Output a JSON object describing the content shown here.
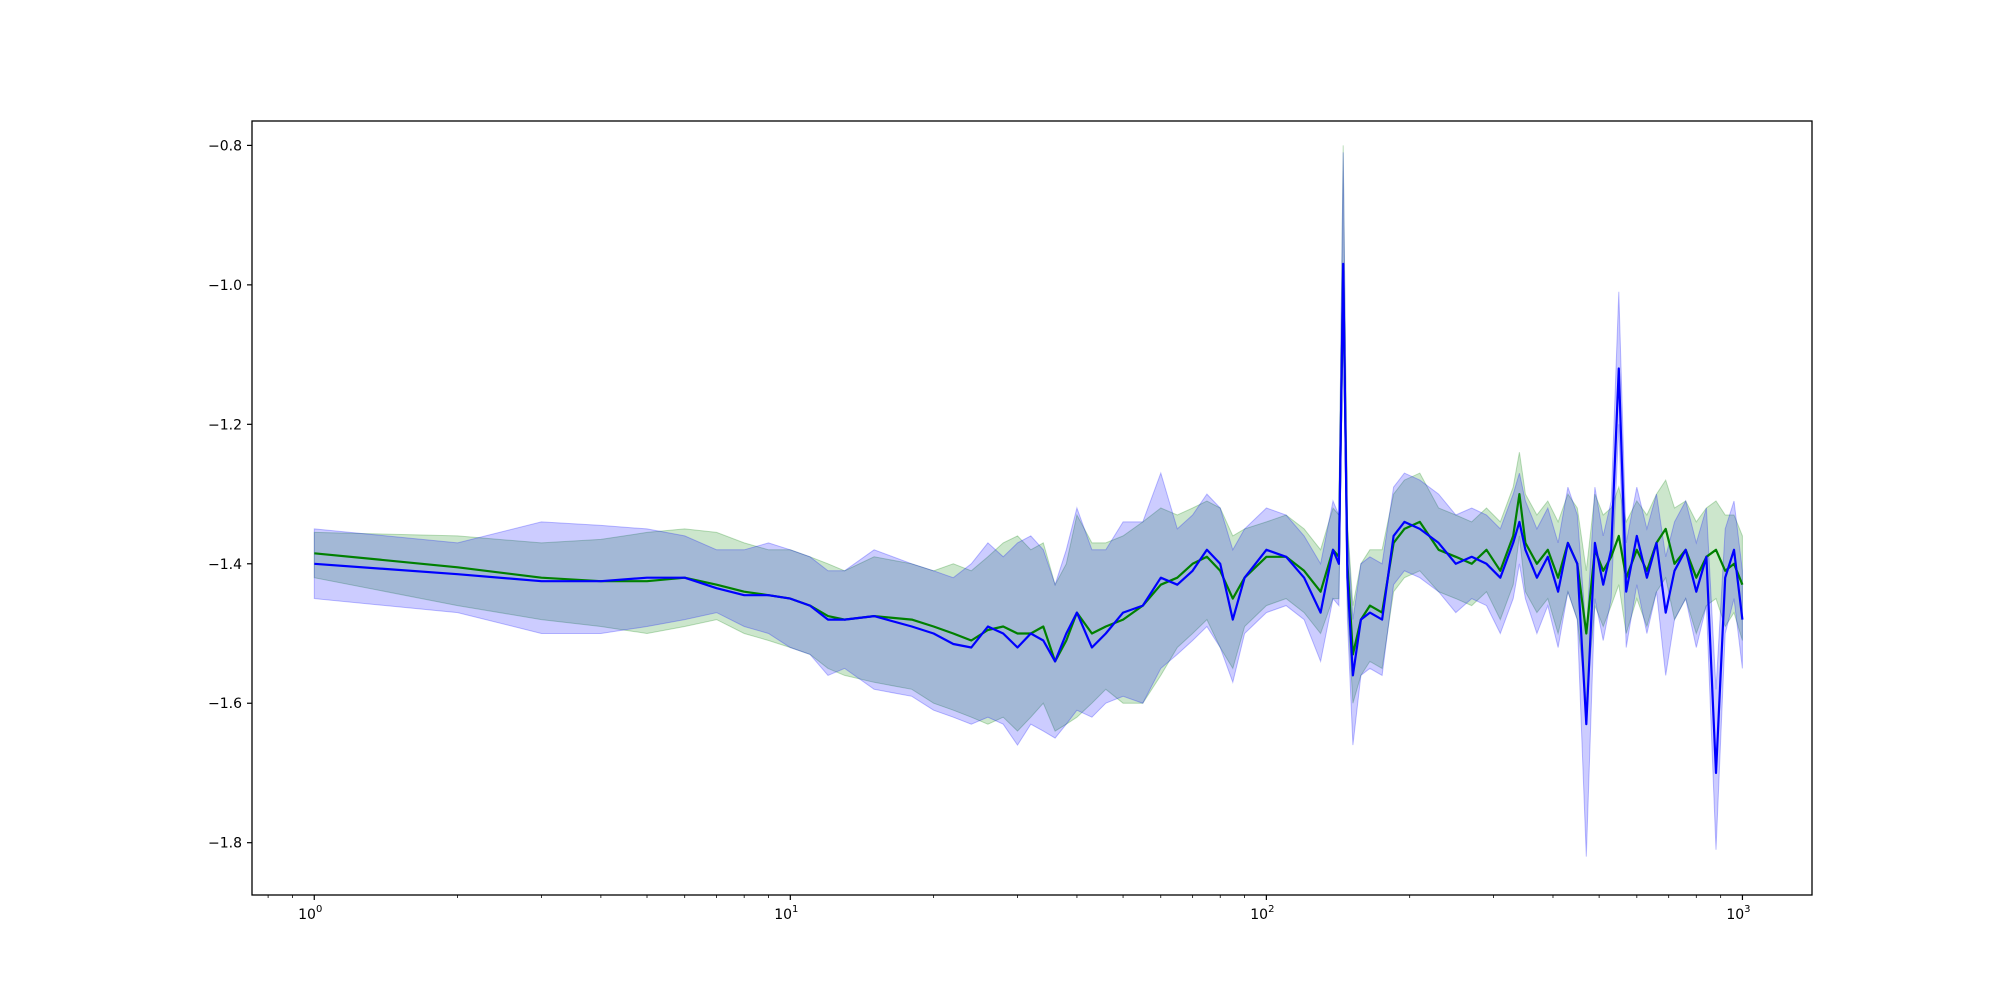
{
  "chart_data": {
    "type": "line",
    "xscale": "log",
    "xlim": [
      0.74,
      1400
    ],
    "ylim": [
      -1.875,
      -0.765
    ],
    "xticks": [
      {
        "value": 1,
        "base": "10",
        "exp": "0"
      },
      {
        "value": 10,
        "base": "10",
        "exp": "1"
      },
      {
        "value": 100,
        "base": "10",
        "exp": "2"
      },
      {
        "value": 1000,
        "base": "10",
        "exp": "3"
      }
    ],
    "yticks": [
      {
        "value": -0.8,
        "label": "−0.8"
      },
      {
        "value": -1.0,
        "label": "−1.0"
      },
      {
        "value": -1.2,
        "label": "−1.2"
      },
      {
        "value": -1.4,
        "label": "−1.4"
      },
      {
        "value": -1.6,
        "label": "−1.6"
      },
      {
        "value": -1.8,
        "label": "−1.8"
      }
    ],
    "grid": false,
    "series": [
      {
        "color": "#008000",
        "band_opacity": 0.2,
        "x": [
          1,
          2,
          3,
          4,
          5,
          6,
          7,
          8,
          9,
          10,
          11,
          12,
          13,
          15,
          18,
          20,
          22,
          24,
          26,
          28,
          30,
          32,
          34,
          36,
          38,
          40,
          43,
          46,
          50,
          55,
          60,
          65,
          70,
          75,
          80,
          85,
          90,
          100,
          110,
          120,
          130,
          138,
          142,
          145,
          148,
          152,
          158,
          165,
          175,
          185,
          195,
          210,
          230,
          250,
          270,
          290,
          310,
          330,
          340,
          350,
          370,
          390,
          410,
          430,
          450,
          470,
          490,
          510,
          530,
          550,
          570,
          600,
          630,
          660,
          690,
          720,
          760,
          800,
          840,
          880,
          920,
          960,
          1000
        ],
        "y": [
          -1.385,
          -1.405,
          -1.42,
          -1.425,
          -1.425,
          -1.42,
          -1.43,
          -1.44,
          -1.445,
          -1.45,
          -1.46,
          -1.475,
          -1.48,
          -1.475,
          -1.48,
          -1.49,
          -1.5,
          -1.51,
          -1.495,
          -1.49,
          -1.5,
          -1.5,
          -1.49,
          -1.54,
          -1.51,
          -1.47,
          -1.5,
          -1.49,
          -1.48,
          -1.46,
          -1.43,
          -1.42,
          -1.4,
          -1.39,
          -1.41,
          -1.45,
          -1.42,
          -1.39,
          -1.39,
          -1.41,
          -1.44,
          -1.38,
          -1.39,
          -0.98,
          -1.4,
          -1.53,
          -1.48,
          -1.46,
          -1.47,
          -1.37,
          -1.35,
          -1.34,
          -1.38,
          -1.39,
          -1.4,
          -1.38,
          -1.41,
          -1.36,
          -1.3,
          -1.37,
          -1.4,
          -1.38,
          -1.42,
          -1.37,
          -1.4,
          -1.5,
          -1.38,
          -1.41,
          -1.39,
          -1.36,
          -1.42,
          -1.38,
          -1.41,
          -1.37,
          -1.35,
          -1.4,
          -1.38,
          -1.42,
          -1.39,
          -1.38,
          -1.41,
          -1.4,
          -1.43
        ],
        "lower": [
          -1.42,
          -1.46,
          -1.48,
          -1.49,
          -1.5,
          -1.49,
          -1.48,
          -1.5,
          -1.51,
          -1.52,
          -1.53,
          -1.55,
          -1.56,
          -1.57,
          -1.58,
          -1.6,
          -1.61,
          -1.62,
          -1.63,
          -1.62,
          -1.64,
          -1.62,
          -1.6,
          -1.64,
          -1.63,
          -1.62,
          -1.6,
          -1.58,
          -1.6,
          -1.6,
          -1.56,
          -1.52,
          -1.5,
          -1.48,
          -1.52,
          -1.55,
          -1.49,
          -1.46,
          -1.45,
          -1.47,
          -1.5,
          -1.45,
          -1.45,
          -1.05,
          -1.46,
          -1.6,
          -1.56,
          -1.54,
          -1.55,
          -1.44,
          -1.42,
          -1.41,
          -1.44,
          -1.45,
          -1.46,
          -1.44,
          -1.48,
          -1.43,
          -1.36,
          -1.44,
          -1.47,
          -1.45,
          -1.5,
          -1.44,
          -1.48,
          -1.6,
          -1.46,
          -1.49,
          -1.46,
          -1.43,
          -1.5,
          -1.45,
          -1.49,
          -1.44,
          -1.42,
          -1.48,
          -1.45,
          -1.5,
          -1.46,
          -1.45,
          -1.49,
          -1.47,
          -1.51
        ],
        "upper": [
          -1.355,
          -1.36,
          -1.37,
          -1.365,
          -1.355,
          -1.35,
          -1.355,
          -1.37,
          -1.38,
          -1.38,
          -1.39,
          -1.4,
          -1.41,
          -1.39,
          -1.4,
          -1.41,
          -1.4,
          -1.41,
          -1.39,
          -1.37,
          -1.36,
          -1.38,
          -1.37,
          -1.43,
          -1.4,
          -1.33,
          -1.37,
          -1.37,
          -1.36,
          -1.34,
          -1.32,
          -1.33,
          -1.32,
          -1.31,
          -1.32,
          -1.36,
          -1.35,
          -1.34,
          -1.33,
          -1.35,
          -1.38,
          -1.32,
          -1.33,
          -0.8,
          -1.34,
          -1.46,
          -1.4,
          -1.38,
          -1.38,
          -1.3,
          -1.28,
          -1.27,
          -1.32,
          -1.33,
          -1.34,
          -1.32,
          -1.34,
          -1.29,
          -1.24,
          -1.3,
          -1.33,
          -1.31,
          -1.34,
          -1.3,
          -1.32,
          -1.41,
          -1.3,
          -1.33,
          -1.32,
          -1.29,
          -1.34,
          -1.31,
          -1.33,
          -1.3,
          -1.28,
          -1.32,
          -1.31,
          -1.34,
          -1.32,
          -1.31,
          -1.33,
          -1.33,
          -1.36
        ]
      },
      {
        "color": "#0000ff",
        "band_opacity": 0.2,
        "x": [
          1,
          2,
          3,
          4,
          5,
          6,
          7,
          8,
          9,
          10,
          11,
          12,
          13,
          15,
          18,
          20,
          22,
          24,
          26,
          28,
          30,
          32,
          34,
          36,
          38,
          40,
          43,
          46,
          50,
          55,
          60,
          65,
          70,
          75,
          80,
          85,
          90,
          100,
          110,
          120,
          130,
          138,
          142,
          145,
          148,
          152,
          158,
          165,
          175,
          185,
          195,
          210,
          230,
          250,
          270,
          290,
          310,
          330,
          340,
          350,
          370,
          390,
          410,
          430,
          450,
          470,
          490,
          510,
          530,
          550,
          570,
          600,
          630,
          660,
          690,
          720,
          760,
          800,
          840,
          880,
          920,
          960,
          1000
        ],
        "y": [
          -1.4,
          -1.415,
          -1.425,
          -1.425,
          -1.42,
          -1.42,
          -1.435,
          -1.445,
          -1.445,
          -1.45,
          -1.46,
          -1.48,
          -1.48,
          -1.475,
          -1.49,
          -1.5,
          -1.515,
          -1.52,
          -1.49,
          -1.5,
          -1.52,
          -1.5,
          -1.51,
          -1.54,
          -1.5,
          -1.47,
          -1.52,
          -1.5,
          -1.47,
          -1.46,
          -1.42,
          -1.43,
          -1.41,
          -1.38,
          -1.4,
          -1.48,
          -1.42,
          -1.38,
          -1.39,
          -1.42,
          -1.47,
          -1.38,
          -1.4,
          -0.97,
          -1.42,
          -1.56,
          -1.48,
          -1.47,
          -1.48,
          -1.36,
          -1.34,
          -1.35,
          -1.37,
          -1.4,
          -1.39,
          -1.4,
          -1.42,
          -1.37,
          -1.34,
          -1.38,
          -1.42,
          -1.39,
          -1.44,
          -1.37,
          -1.4,
          -1.63,
          -1.37,
          -1.43,
          -1.38,
          -1.12,
          -1.44,
          -1.36,
          -1.42,
          -1.37,
          -1.47,
          -1.41,
          -1.38,
          -1.44,
          -1.39,
          -1.7,
          -1.42,
          -1.38,
          -1.48
        ],
        "lower": [
          -1.45,
          -1.47,
          -1.5,
          -1.5,
          -1.49,
          -1.48,
          -1.47,
          -1.49,
          -1.5,
          -1.52,
          -1.53,
          -1.56,
          -1.55,
          -1.58,
          -1.59,
          -1.61,
          -1.62,
          -1.63,
          -1.62,
          -1.63,
          -1.66,
          -1.63,
          -1.64,
          -1.65,
          -1.63,
          -1.61,
          -1.62,
          -1.6,
          -1.59,
          -1.6,
          -1.55,
          -1.53,
          -1.51,
          -1.49,
          -1.52,
          -1.57,
          -1.5,
          -1.47,
          -1.46,
          -1.48,
          -1.54,
          -1.45,
          -1.46,
          -1.04,
          -1.48,
          -1.66,
          -1.56,
          -1.55,
          -1.56,
          -1.43,
          -1.41,
          -1.42,
          -1.44,
          -1.47,
          -1.45,
          -1.46,
          -1.5,
          -1.45,
          -1.4,
          -1.45,
          -1.5,
          -1.46,
          -1.52,
          -1.44,
          -1.48,
          -1.82,
          -1.45,
          -1.51,
          -1.45,
          -1.2,
          -1.52,
          -1.43,
          -1.5,
          -1.44,
          -1.56,
          -1.48,
          -1.45,
          -1.52,
          -1.46,
          -1.81,
          -1.5,
          -1.45,
          -1.55
        ],
        "upper": [
          -1.35,
          -1.37,
          -1.34,
          -1.345,
          -1.35,
          -1.36,
          -1.38,
          -1.38,
          -1.37,
          -1.38,
          -1.39,
          -1.41,
          -1.41,
          -1.38,
          -1.4,
          -1.41,
          -1.42,
          -1.4,
          -1.37,
          -1.39,
          -1.37,
          -1.36,
          -1.38,
          -1.43,
          -1.38,
          -1.32,
          -1.38,
          -1.38,
          -1.34,
          -1.34,
          -1.27,
          -1.35,
          -1.33,
          -1.3,
          -1.32,
          -1.38,
          -1.35,
          -1.32,
          -1.33,
          -1.36,
          -1.4,
          -1.31,
          -1.33,
          -0.81,
          -1.35,
          -1.48,
          -1.4,
          -1.39,
          -1.4,
          -1.29,
          -1.27,
          -1.28,
          -1.3,
          -1.33,
          -1.32,
          -1.33,
          -1.35,
          -1.3,
          -1.27,
          -1.31,
          -1.35,
          -1.32,
          -1.37,
          -1.29,
          -1.33,
          -1.5,
          -1.29,
          -1.36,
          -1.31,
          -1.01,
          -1.37,
          -1.29,
          -1.35,
          -1.3,
          -1.39,
          -1.34,
          -1.31,
          -1.37,
          -1.32,
          -1.58,
          -1.35,
          -1.31,
          -1.41
        ]
      }
    ]
  }
}
